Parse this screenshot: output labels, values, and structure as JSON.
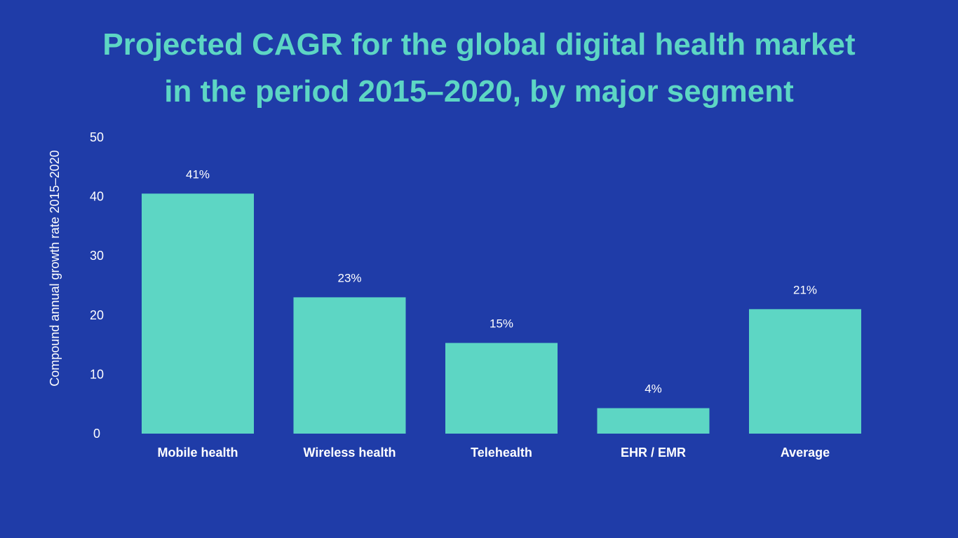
{
  "chart_data": {
    "type": "bar",
    "title_lines": [
      "Projected CAGR for the global digital health market",
      "in the period 2015–2020, by major segment"
    ],
    "xlabel": "",
    "ylabel": "Compound annual growth rate 2015–2020",
    "categories": [
      "Mobile health",
      "Wireless health",
      "Telehealth",
      "EHR / EMR",
      "Average"
    ],
    "values": [
      40.5,
      23,
      15.3,
      4.3,
      21
    ],
    "data_labels": [
      "41%",
      "23%",
      "15%",
      "4%",
      "21%"
    ],
    "ylim": [
      0,
      50
    ],
    "yticks": [
      "0",
      "10",
      "20",
      "30",
      "40",
      "50"
    ],
    "grid": false,
    "legend": "none",
    "colors": {
      "background": "#1f3ca8",
      "bar": "#5dd6c4",
      "title": "#5dd6c4",
      "text": "#ffffff"
    }
  }
}
